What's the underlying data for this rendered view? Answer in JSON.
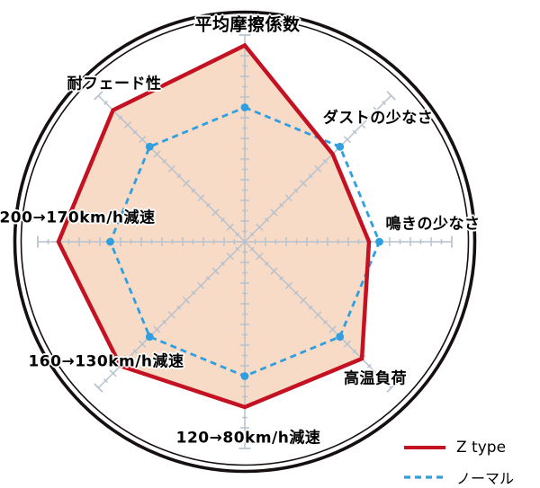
{
  "chart_data": {
    "type": "radar",
    "title": "",
    "categories": [
      "平均摩擦係数",
      "ダストの少なさ",
      "鳴きの少なさ",
      "高温負荷",
      "120→80km/h減速",
      "160→130km/h減速",
      "200→170km/h減速",
      "耐フェード性"
    ],
    "series": [
      {
        "name": "Z type",
        "values": [
          9.5,
          6,
          6,
          8,
          8,
          8.5,
          9,
          9
        ],
        "color": "#c41222",
        "fill": "#f8dbc6",
        "style": "solid"
      },
      {
        "name": "ノーマル",
        "values": [
          6.5,
          6.5,
          6.5,
          6.5,
          6.5,
          6.5,
          6.5,
          6.5
        ],
        "color": "#2f9fe0",
        "fill": "none",
        "style": "dashed"
      }
    ],
    "scale": {
      "min": 0,
      "max": 10,
      "tick_step": 1,
      "minor_tick_step": 0.5
    },
    "grid": "radial-spokes-with-ticks",
    "legend_position": "bottom-right"
  },
  "colors": {
    "background": "#ffffff",
    "outer_ring": "#171011",
    "axis": "#b5c2ce",
    "z_type_line": "#c41222",
    "z_type_fill": "#f8dbc6",
    "normal_line": "#2f9fe0",
    "label_text": "#000000"
  }
}
